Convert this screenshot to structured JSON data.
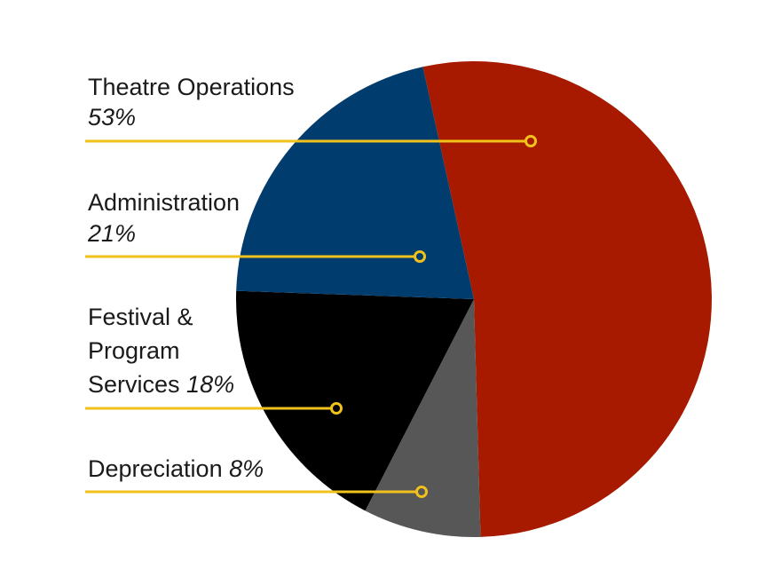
{
  "chart_data": {
    "type": "pie",
    "title": "",
    "slices": [
      {
        "name": "Theatre Operations",
        "name_lines": [
          "Theatre Operations"
        ],
        "percent_label": "53%",
        "value": 53,
        "color": "#a71a00"
      },
      {
        "name": "Depreciation",
        "name_lines": [
          "Depreciation"
        ],
        "percent_label": "8%",
        "value": 8,
        "color": "#575757"
      },
      {
        "name": "Festival & Program Services",
        "name_lines": [
          "Festival &",
          "Program",
          "Services"
        ],
        "percent_label": "18%",
        "value": 18,
        "color": "#000000"
      },
      {
        "name": "Administration",
        "name_lines": [
          "Administration"
        ],
        "percent_label": "21%",
        "value": 21,
        "color": "#003c6e"
      }
    ],
    "start_angle_deg": -12.4,
    "direction": "clockwise",
    "leader_line_color": "#f1c21b"
  }
}
